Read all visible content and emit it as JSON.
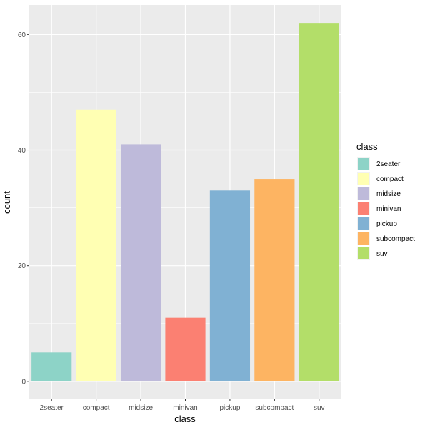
{
  "chart_data": {
    "type": "bar",
    "categories": [
      "2seater",
      "compact",
      "midsize",
      "minivan",
      "pickup",
      "subcompact",
      "suv"
    ],
    "values": [
      5,
      47,
      41,
      11,
      33,
      35,
      62
    ],
    "colors": [
      "#8DD3C7",
      "#FFFFB3",
      "#BEBADA",
      "#FB8072",
      "#80B1D3",
      "#FDB462",
      "#B3DE69"
    ],
    "xlabel": "class",
    "ylabel": "count",
    "ylim": [
      -3.1,
      65.1
    ],
    "yticks": [
      0,
      20,
      40,
      60
    ],
    "grid": true,
    "legend": {
      "title": "class",
      "placement": "right",
      "entries": [
        "2seater",
        "compact",
        "midsize",
        "minivan",
        "pickup",
        "subcompact",
        "suv"
      ]
    }
  }
}
